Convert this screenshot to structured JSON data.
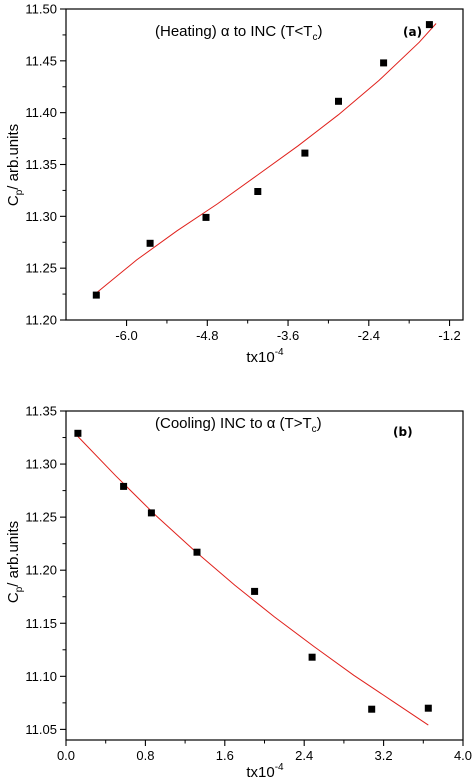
{
  "chart_data": [
    {
      "type": "scatter",
      "panel_tag": "(a)",
      "title_prefix": "(Heating) ",
      "title_alpha": "α",
      "title_mid": " to INC (T<T",
      "title_sub": "c",
      "title_end": ")",
      "xlabel": "tx10",
      "xlabel_sup": "-4",
      "ylabel_main": "C",
      "ylabel_sub": "p",
      "ylabel_rest": "/ arb.units",
      "xlim": [
        -6.9,
        -1.0
      ],
      "ylim": [
        11.2,
        11.5
      ],
      "xticks": [
        -6.0,
        -4.8,
        -3.6,
        -2.4,
        -1.2
      ],
      "xtick_labels": [
        "-6.0",
        "-4.8",
        "-3.6",
        "-2.4",
        "-1.2"
      ],
      "yticks": [
        11.2,
        11.25,
        11.3,
        11.35,
        11.4,
        11.45,
        11.5
      ],
      "ytick_labels": [
        "11.20",
        "11.25",
        "11.30",
        "11.35",
        "11.40",
        "11.45",
        "11.50"
      ],
      "marker_color": "#000000",
      "fit_color": "#e0201b",
      "points": {
        "x": [
          -6.45,
          -5.65,
          -4.82,
          -4.05,
          -3.35,
          -2.85,
          -2.18,
          -1.5
        ],
        "y": [
          11.224,
          11.274,
          11.299,
          11.324,
          11.361,
          11.411,
          11.448,
          11.485
        ]
      },
      "fit": {
        "x": [
          -6.45,
          -5.85,
          -5.25,
          -4.65,
          -4.05,
          -3.45,
          -2.85,
          -2.25,
          -1.65,
          -1.4
        ],
        "y": [
          11.226,
          11.258,
          11.286,
          11.312,
          11.34,
          11.368,
          11.398,
          11.431,
          11.468,
          11.486
        ]
      }
    },
    {
      "type": "scatter",
      "panel_tag": "(b)",
      "title_prefix": "(Cooling) INC to ",
      "title_alpha": "α",
      "title_mid": " (T>T",
      "title_sub": "c",
      "title_end": ")",
      "xlabel": "tx10",
      "xlabel_sup": "-4",
      "ylabel_main": "C",
      "ylabel_sub": "p",
      "ylabel_rest": "/ arb.units",
      "xlim": [
        0.0,
        4.0
      ],
      "ylim": [
        11.04,
        11.35
      ],
      "xticks": [
        0.0,
        0.8,
        1.6,
        2.4,
        3.2,
        4.0
      ],
      "xtick_labels": [
        "0.0",
        "0.8",
        "1.6",
        "2.4",
        "3.2",
        "4.0"
      ],
      "yticks": [
        11.05,
        11.1,
        11.15,
        11.2,
        11.25,
        11.3,
        11.35
      ],
      "ytick_labels": [
        "11.05",
        "11.10",
        "11.15",
        "11.20",
        "11.25",
        "11.30",
        "11.35"
      ],
      "marker_color": "#000000",
      "fit_color": "#e0201b",
      "points": {
        "x": [
          0.12,
          0.58,
          0.86,
          1.32,
          1.9,
          2.48,
          3.08,
          3.65
        ],
        "y": [
          11.329,
          11.279,
          11.254,
          11.217,
          11.18,
          11.118,
          11.069,
          11.07
        ]
      },
      "fit": {
        "x": [
          0.12,
          0.5,
          0.9,
          1.3,
          1.7,
          2.1,
          2.5,
          2.9,
          3.3,
          3.65
        ],
        "y": [
          11.326,
          11.289,
          11.252,
          11.218,
          11.186,
          11.156,
          11.128,
          11.101,
          11.076,
          11.054
        ]
      }
    }
  ]
}
